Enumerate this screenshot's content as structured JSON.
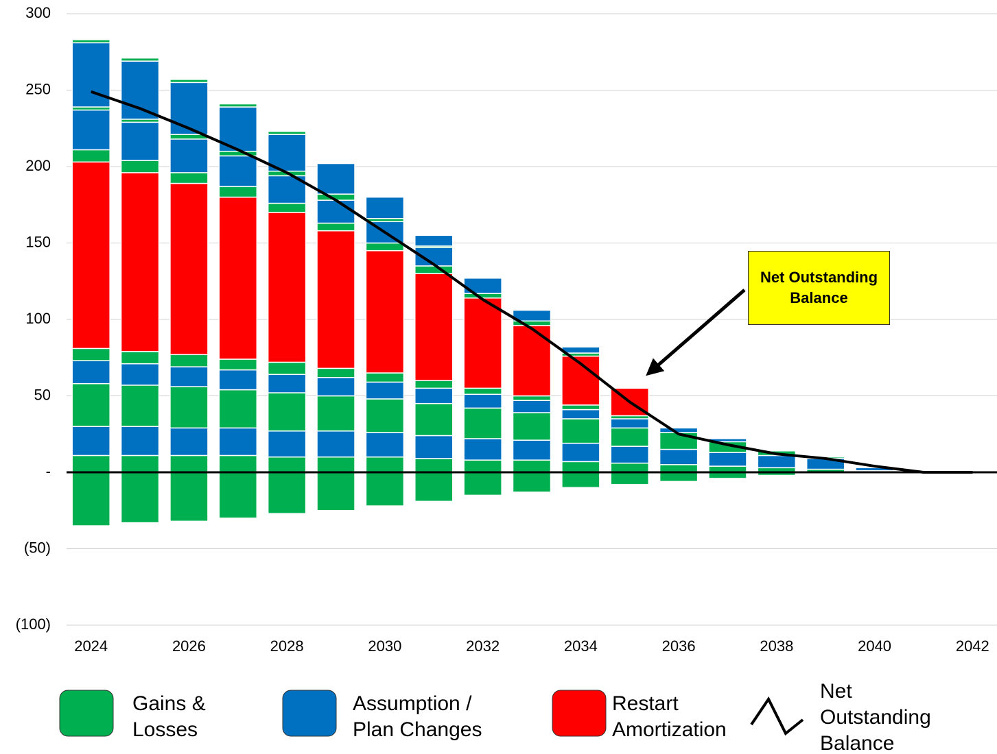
{
  "chart_data": {
    "type": "bar",
    "x": [
      2024,
      2025,
      2026,
      2027,
      2028,
      2029,
      2030,
      2031,
      2032,
      2033,
      2034,
      2035,
      2036,
      2037,
      2038,
      2039,
      2040,
      2041,
      2042
    ],
    "xlim": [
      2023.5,
      2042.5
    ],
    "xticks": [
      2024,
      2026,
      2028,
      2030,
      2032,
      2034,
      2036,
      2038,
      2040,
      2042
    ],
    "ylim": [
      -100,
      300
    ],
    "yticks": [
      300,
      250,
      200,
      150,
      100,
      50,
      {
        "value": 0,
        "label": "-"
      },
      {
        "value": -50,
        "label": "(50)"
      },
      {
        "value": -100,
        "label": "(100)"
      }
    ],
    "grid": true,
    "stacked": true,
    "series": [
      {
        "name": "Gains & Losses",
        "color": "#00b050",
        "values": [
          11,
          11,
          11,
          11,
          10,
          10,
          10,
          9,
          8,
          8,
          7,
          6,
          5,
          4,
          3,
          2,
          1,
          0,
          0
        ]
      },
      {
        "name": "Assumption / Plan Changes",
        "color": "#0070c0",
        "values": [
          19,
          19,
          18,
          18,
          17,
          17,
          16,
          15,
          14,
          13,
          12,
          11,
          10,
          9,
          8,
          7,
          2,
          0,
          0
        ]
      },
      {
        "name": "Gains & Losses",
        "color": "#00b050",
        "values": [
          28,
          27,
          27,
          25,
          25,
          23,
          22,
          21,
          20,
          18,
          16,
          12,
          11,
          7,
          3,
          1,
          0,
          0,
          0
        ]
      },
      {
        "name": "Assumption / Plan Changes",
        "color": "#0070c0",
        "values": [
          15,
          14,
          13,
          13,
          12,
          12,
          11,
          10,
          9,
          8,
          6,
          6,
          3,
          2,
          0,
          0,
          0,
          0,
          0
        ]
      },
      {
        "name": "Gains & Losses",
        "color": "#00b050",
        "values": [
          8,
          8,
          8,
          7,
          8,
          6,
          6,
          5,
          4,
          3,
          3,
          2,
          0,
          0,
          0,
          0,
          0,
          0,
          0
        ]
      },
      {
        "name": "Restart Amortization",
        "color": "#ff0000",
        "values": [
          122,
          117,
          112,
          106,
          98,
          90,
          80,
          70,
          59,
          46,
          32,
          18,
          0,
          0,
          0,
          0,
          0,
          0,
          0
        ]
      },
      {
        "name": "Gains & Losses",
        "color": "#00b050",
        "values": [
          8,
          8,
          7,
          7,
          6,
          5,
          5,
          5,
          3,
          3,
          2,
          0,
          0,
          0,
          0,
          0,
          0,
          0,
          0
        ]
      },
      {
        "name": "Assumption / Plan Changes",
        "color": "#0070c0",
        "values": [
          26,
          25,
          22,
          20,
          18,
          15,
          14,
          12,
          10,
          7,
          4,
          0,
          0,
          0,
          0,
          0,
          0,
          0,
          0
        ]
      },
      {
        "name": "Gains & Losses",
        "color": "#00b050",
        "values": [
          2,
          2,
          3,
          3,
          3,
          4,
          2,
          1,
          0,
          0,
          0,
          0,
          0,
          0,
          0,
          0,
          0,
          0,
          0
        ]
      },
      {
        "name": "Assumption / Plan Changes",
        "color": "#0070c0",
        "values": [
          42,
          38,
          34,
          29,
          24,
          20,
          14,
          7,
          0,
          0,
          0,
          0,
          0,
          0,
          0,
          0,
          0,
          0,
          0
        ]
      },
      {
        "name": "Gains & Losses",
        "color": "#00b050",
        "values": [
          2,
          2,
          2,
          2,
          2,
          0,
          0,
          0,
          0,
          0,
          0,
          0,
          0,
          0,
          0,
          0,
          0,
          0,
          0
        ]
      },
      {
        "name": "Gains & Losses",
        "color": "#00b050",
        "values": [
          -35,
          -33,
          -32,
          -30,
          -27,
          -25,
          -22,
          -19,
          -15,
          -13,
          -10,
          -8,
          -6,
          -4,
          -2,
          -1,
          0,
          0,
          0
        ]
      },
      {
        "name": "Net Outstanding Balance",
        "type": "line",
        "color": "#000000",
        "values": [
          249,
          238,
          225,
          211,
          196,
          178,
          157,
          136,
          113,
          94,
          71,
          46,
          25,
          18,
          12,
          9,
          4,
          0,
          0
        ]
      }
    ],
    "annotation": "Net Outstanding Balance"
  }
}
